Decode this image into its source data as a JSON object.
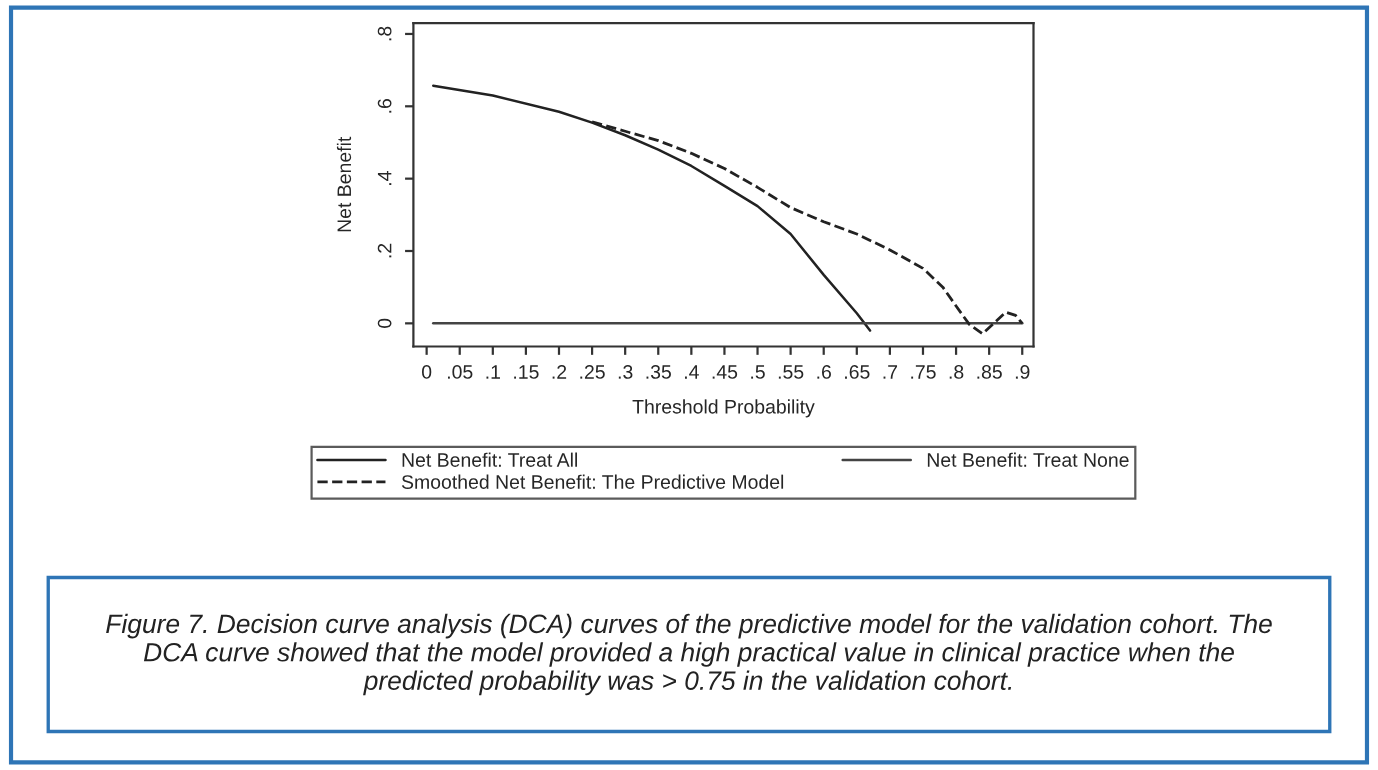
{
  "chart_data": {
    "type": "line",
    "xlabel": "Threshold Probability",
    "ylabel": "Net Benefit",
    "xlim": [
      -0.02,
      0.917
    ],
    "ylim": [
      -0.064,
      0.83
    ],
    "xticks": [
      {
        "value": 0,
        "label": "0"
      },
      {
        "value": 0.05,
        "label": ".05"
      },
      {
        "value": 0.1,
        "label": ".1"
      },
      {
        "value": 0.15,
        "label": ".15"
      },
      {
        "value": 0.2,
        "label": ".2"
      },
      {
        "value": 0.25,
        "label": ".25"
      },
      {
        "value": 0.3,
        "label": ".3"
      },
      {
        "value": 0.35,
        "label": ".35"
      },
      {
        "value": 0.4,
        "label": ".4"
      },
      {
        "value": 0.45,
        "label": ".45"
      },
      {
        "value": 0.5,
        "label": ".5"
      },
      {
        "value": 0.55,
        "label": ".55"
      },
      {
        "value": 0.6,
        "label": ".6"
      },
      {
        "value": 0.65,
        "label": ".65"
      },
      {
        "value": 0.7,
        "label": ".7"
      },
      {
        "value": 0.75,
        "label": ".75"
      },
      {
        "value": 0.8,
        "label": ".8"
      },
      {
        "value": 0.85,
        "label": ".85"
      },
      {
        "value": 0.9,
        "label": ".9"
      }
    ],
    "yticks": [
      {
        "value": 0,
        "label": "0"
      },
      {
        "value": 0.2,
        "label": ".2"
      },
      {
        "value": 0.4,
        "label": ".4"
      },
      {
        "value": 0.6,
        "label": ".6"
      },
      {
        "value": 0.8,
        "label": ".8"
      }
    ],
    "grid": false,
    "legend": "bottom",
    "marker": "none",
    "series": [
      {
        "name": "Net Benefit: Treat All",
        "color": "#222222",
        "line_style": "solid",
        "x": [
          0.01,
          0.1,
          0.2,
          0.25,
          0.3,
          0.35,
          0.4,
          0.45,
          0.5,
          0.55,
          0.6,
          0.65,
          0.67
        ],
        "values": [
          0.657,
          0.63,
          0.585,
          0.555,
          0.52,
          0.48,
          0.435,
          0.38,
          0.324,
          0.247,
          0.134,
          0.028,
          -0.02
        ]
      },
      {
        "name": "Net Benefit: Treat None",
        "color": "#444444",
        "line_style": "solid",
        "x": [
          0.01,
          0.9
        ],
        "values": [
          0,
          0
        ]
      },
      {
        "name": "Smoothed Net Benefit: The Predictive Model",
        "color": "#222222",
        "line_style": "dashed",
        "x": [
          0.25,
          0.3,
          0.35,
          0.4,
          0.45,
          0.5,
          0.55,
          0.6,
          0.65,
          0.7,
          0.75,
          0.78,
          0.8,
          0.82,
          0.84,
          0.86,
          0.875,
          0.89,
          0.9
        ],
        "values": [
          0.557,
          0.531,
          0.505,
          0.47,
          0.428,
          0.376,
          0.32,
          0.281,
          0.247,
          0.203,
          0.152,
          0.1,
          0.048,
          -0.003,
          -0.029,
          0.005,
          0.031,
          0.022,
          0
        ]
      }
    ],
    "annotations": [
      "Figure 7. Decision curve analysis (DCA) curves of the predictive model for the validation cohort. The DCA curve showed that the model provided a high practical value in clinical practice when the predicted probability was > 0.75 in the validation cohort."
    ]
  }
}
